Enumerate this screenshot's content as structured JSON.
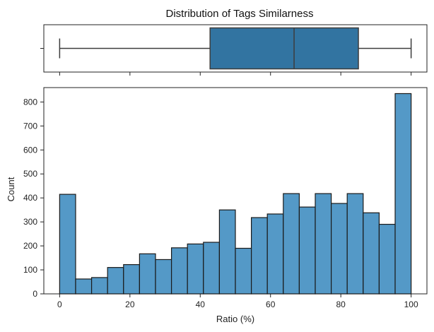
{
  "chart_data": {
    "title": "Distribution of Tags Similarness",
    "boxplot": {
      "type": "box",
      "whisker_low": 0,
      "q1": 42.8,
      "median": 66.7,
      "q3": 85.0,
      "whisker_high": 100,
      "color": "#3274a1"
    },
    "histogram": {
      "type": "bar",
      "xlabel": "Ratio (%)",
      "ylabel": "Count",
      "xlim": [
        -4.5,
        104.5
      ],
      "ylim": [
        0,
        860
      ],
      "bin_width": 4.5455,
      "bin_starts": [
        0,
        4.545,
        9.091,
        13.636,
        18.182,
        22.727,
        27.273,
        31.818,
        36.364,
        40.909,
        45.455,
        50.0,
        54.545,
        59.091,
        63.636,
        68.182,
        72.727,
        77.273,
        81.818,
        86.364,
        90.909,
        95.455
      ],
      "counts": [
        415,
        62,
        68,
        110,
        122,
        167,
        143,
        192,
        208,
        215,
        350,
        190,
        318,
        333,
        418,
        362,
        418,
        377,
        418,
        338,
        290,
        835
      ],
      "color": "#5499c7",
      "x_ticks": [
        0,
        20,
        40,
        60,
        80,
        100
      ],
      "y_ticks": [
        0,
        100,
        200,
        300,
        400,
        500,
        600,
        700,
        800
      ]
    }
  }
}
